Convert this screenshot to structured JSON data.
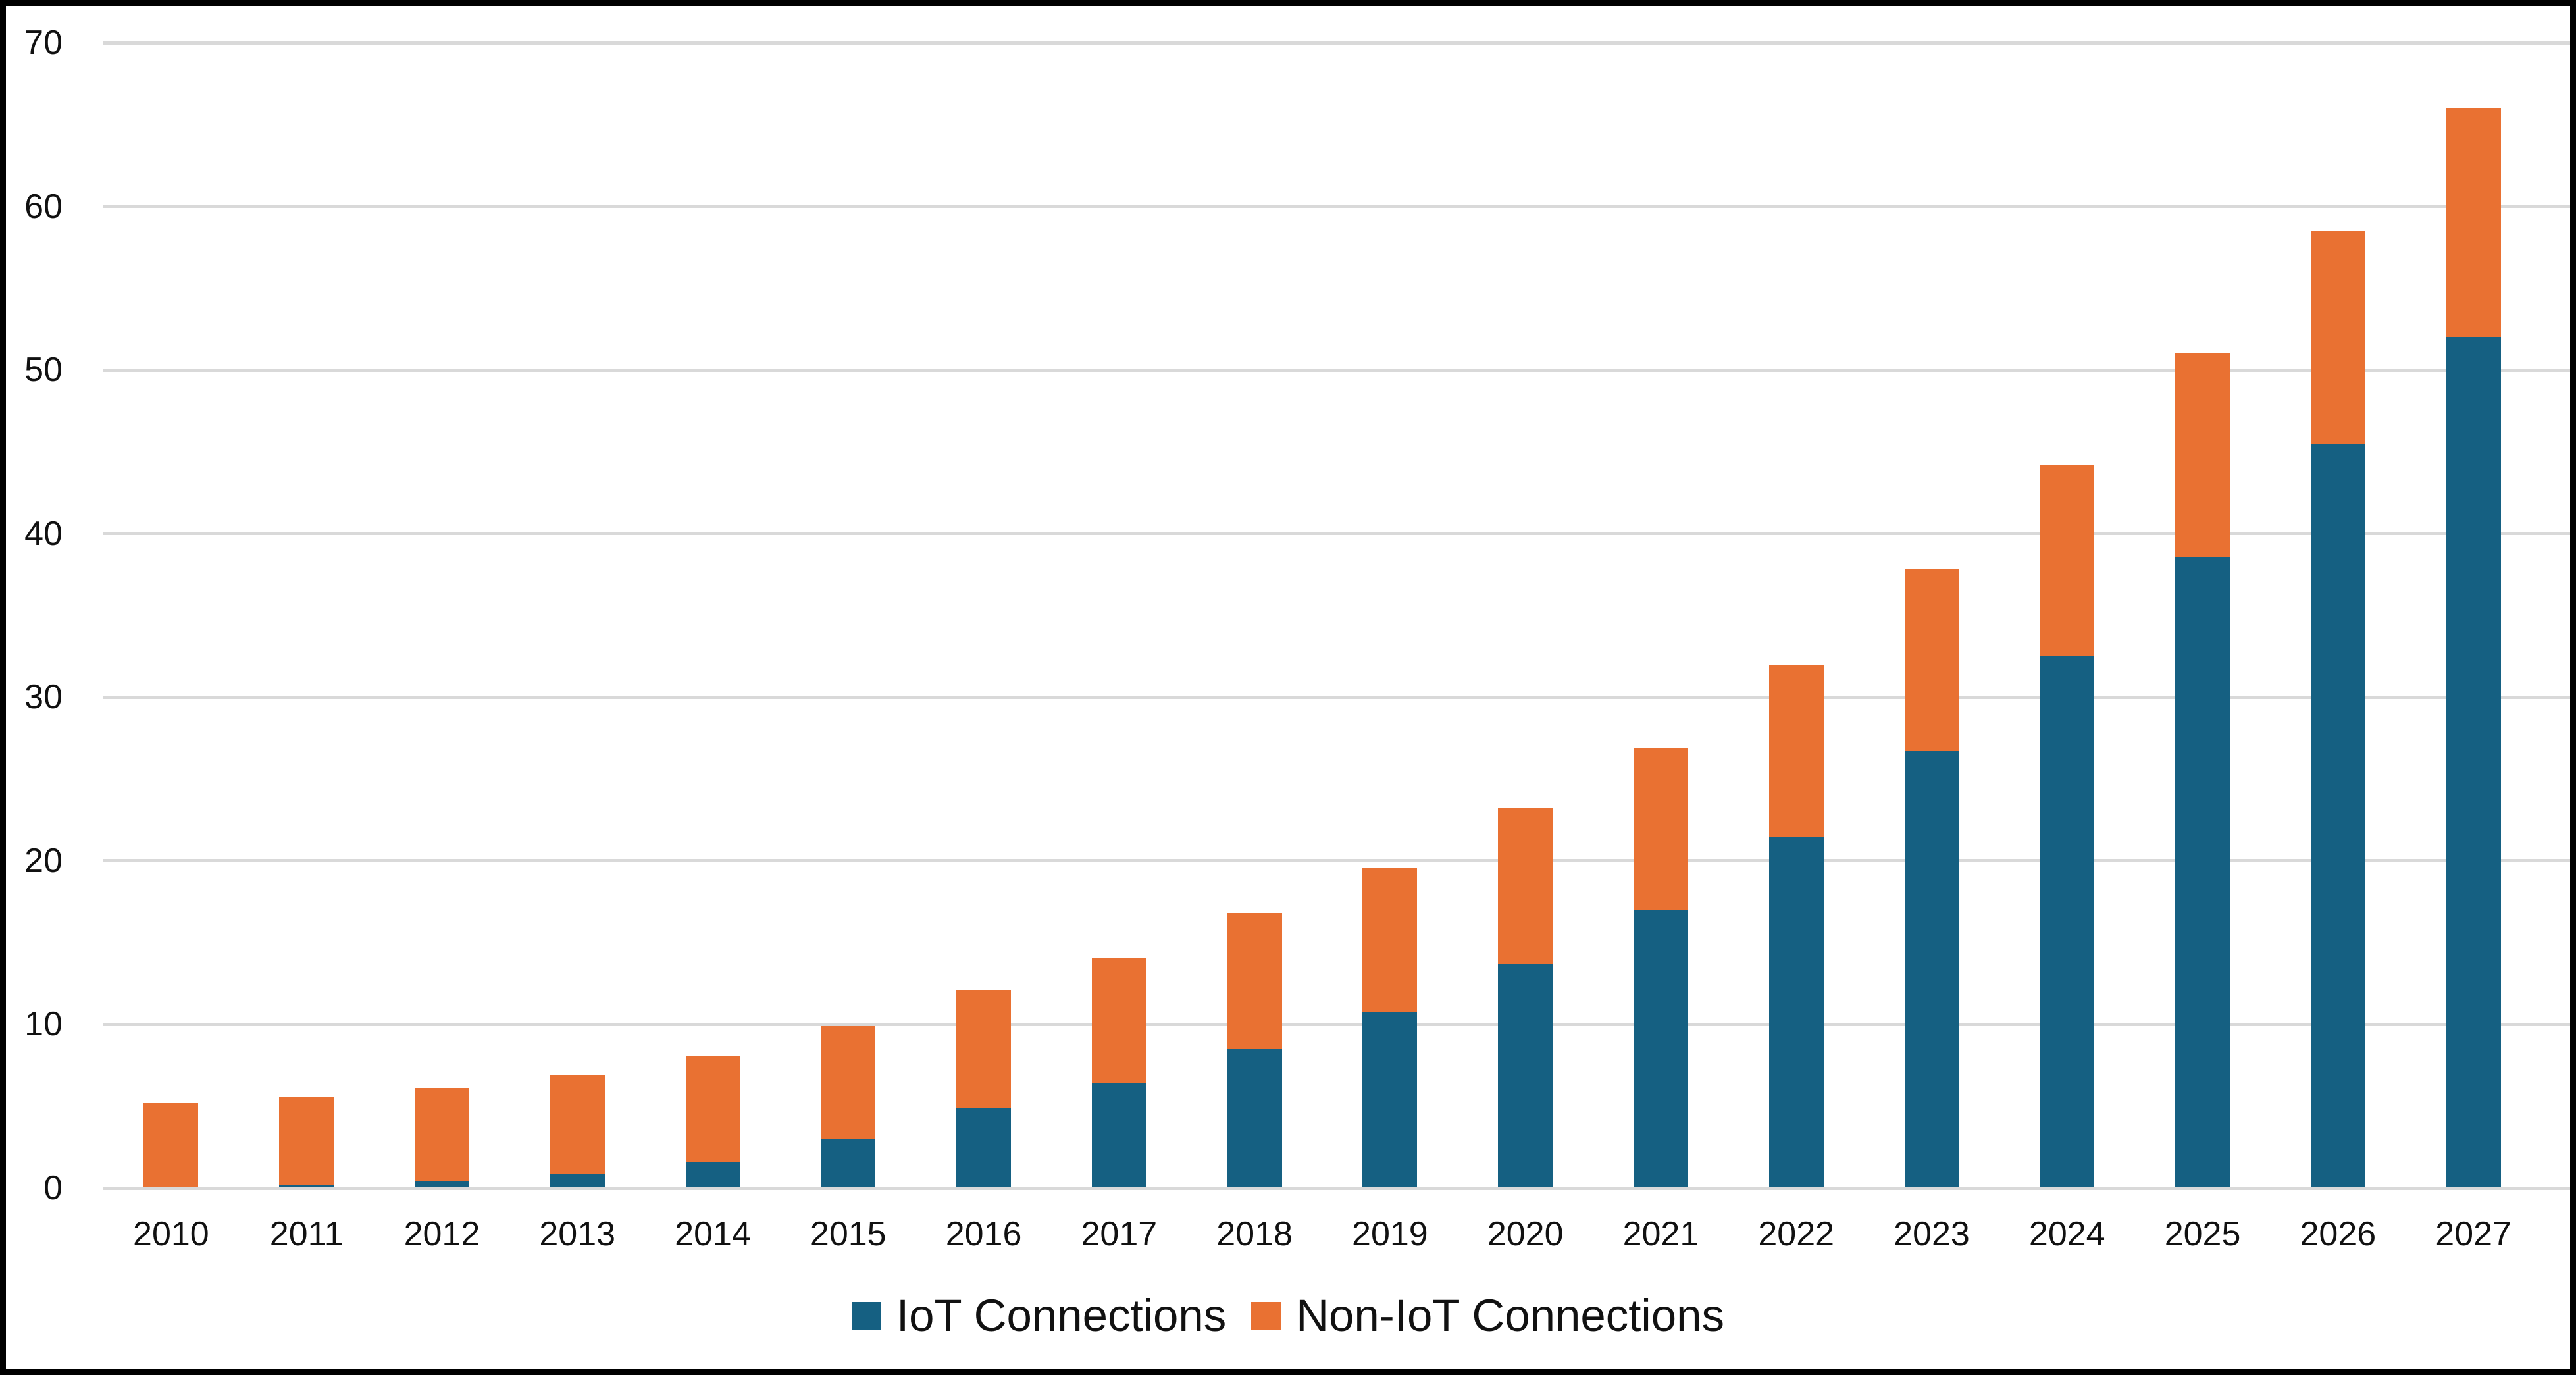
{
  "chart_data": {
    "type": "bar",
    "stacked": true,
    "title": "",
    "categories": [
      "2010",
      "2011",
      "2012",
      "2013",
      "2014",
      "2015",
      "2016",
      "2017",
      "2018",
      "2019",
      "2020",
      "2021",
      "2022",
      "2023",
      "2024",
      "2025",
      "2026",
      "2027"
    ],
    "series": [
      {
        "name": "IoT Connections",
        "color": "#156082",
        "values": [
          0,
          0.2,
          0.4,
          0.9,
          1.6,
          3.0,
          4.9,
          6.4,
          8.5,
          10.8,
          13.7,
          17.0,
          21.5,
          26.7,
          32.5,
          38.6,
          45.5,
          52.0
        ]
      },
      {
        "name": "Non-IoT Connections",
        "color": "#E97132",
        "values": [
          5.2,
          5.4,
          5.7,
          6.0,
          6.5,
          6.9,
          7.2,
          7.7,
          8.3,
          8.8,
          9.5,
          9.9,
          10.5,
          11.1,
          11.7,
          12.4,
          13.0,
          14.0
        ]
      }
    ],
    "totals": [
      5.2,
      5.6,
      6.1,
      6.9,
      8.1,
      9.9,
      12.1,
      14.1,
      16.8,
      19.6,
      23.2,
      26.9,
      32.0,
      37.8,
      44.2,
      51.0,
      58.5,
      66.0
    ],
    "xlabel": "",
    "ylabel": "",
    "ylim": [
      0,
      70
    ],
    "yticks": [
      0,
      10,
      20,
      30,
      40,
      50,
      60,
      70
    ],
    "grid": "horizontal",
    "gridline_color": "#D9D9D9",
    "axis_text_color": "#111111",
    "background_color": "#FFFFFF",
    "frame_border_color": "#000000",
    "legend_position": "bottom-center"
  }
}
